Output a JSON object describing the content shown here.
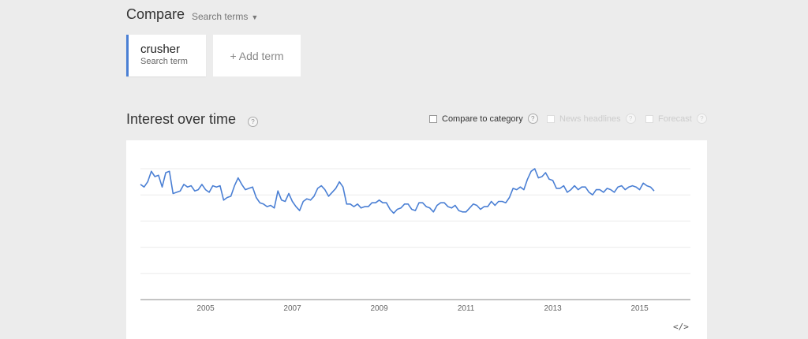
{
  "header": {
    "title": "Compare",
    "search_terms_label": "Search terms",
    "caret_icon": "caret-down-icon"
  },
  "terms": [
    {
      "name": "crusher",
      "subtitle": "Search term",
      "color": "#4a7fd4"
    }
  ],
  "add_term_label": "+ Add term",
  "interest_section": {
    "title": "Interest over time",
    "help_glyph": "?",
    "options": {
      "compare_to_category": "Compare to category",
      "news_headlines": "News headlines",
      "forecast": "Forecast"
    },
    "embed_glyph": "</>"
  },
  "chart_data": {
    "type": "line",
    "title": "",
    "xlabel": "",
    "ylabel": "",
    "ylim": [
      0,
      100
    ],
    "xlim": [
      2004,
      2016.67
    ],
    "x_ticks": [
      "2005",
      "2007",
      "2009",
      "2011",
      "2013",
      "2015"
    ],
    "grid": true,
    "series": [
      {
        "color": "#4a7fd4",
        "start": 2004.0,
        "step_months": 1,
        "values": [
          88,
          86,
          90,
          98,
          94,
          95,
          86,
          97,
          98,
          81,
          82,
          83,
          88,
          86,
          87,
          83,
          84,
          88,
          84,
          82,
          87,
          86,
          87,
          76,
          78,
          79,
          87,
          93,
          88,
          84,
          85,
          86,
          78,
          74,
          73,
          71,
          72,
          70,
          83,
          76,
          75,
          81,
          75,
          71,
          68,
          75,
          77,
          76,
          79,
          85,
          87,
          84,
          79,
          82,
          85,
          90,
          86,
          73,
          73,
          71,
          73,
          70,
          71,
          71,
          74,
          74,
          76,
          74,
          74,
          69,
          66,
          69,
          70,
          73,
          73,
          69,
          68,
          74,
          74,
          71,
          70,
          67,
          72,
          74,
          74,
          71,
          70,
          72,
          68,
          67,
          67,
          70,
          73,
          72,
          69,
          71,
          71,
          75,
          72,
          75,
          75,
          74,
          78,
          85,
          84,
          86,
          84,
          92,
          98,
          100,
          93,
          94,
          97,
          92,
          91,
          85,
          85,
          87,
          82,
          84,
          87,
          84,
          86,
          86,
          82,
          80,
          84,
          84,
          82,
          85,
          84,
          82,
          86,
          87,
          84,
          86,
          87,
          86,
          84,
          89,
          87,
          86,
          83
        ]
      }
    ]
  }
}
